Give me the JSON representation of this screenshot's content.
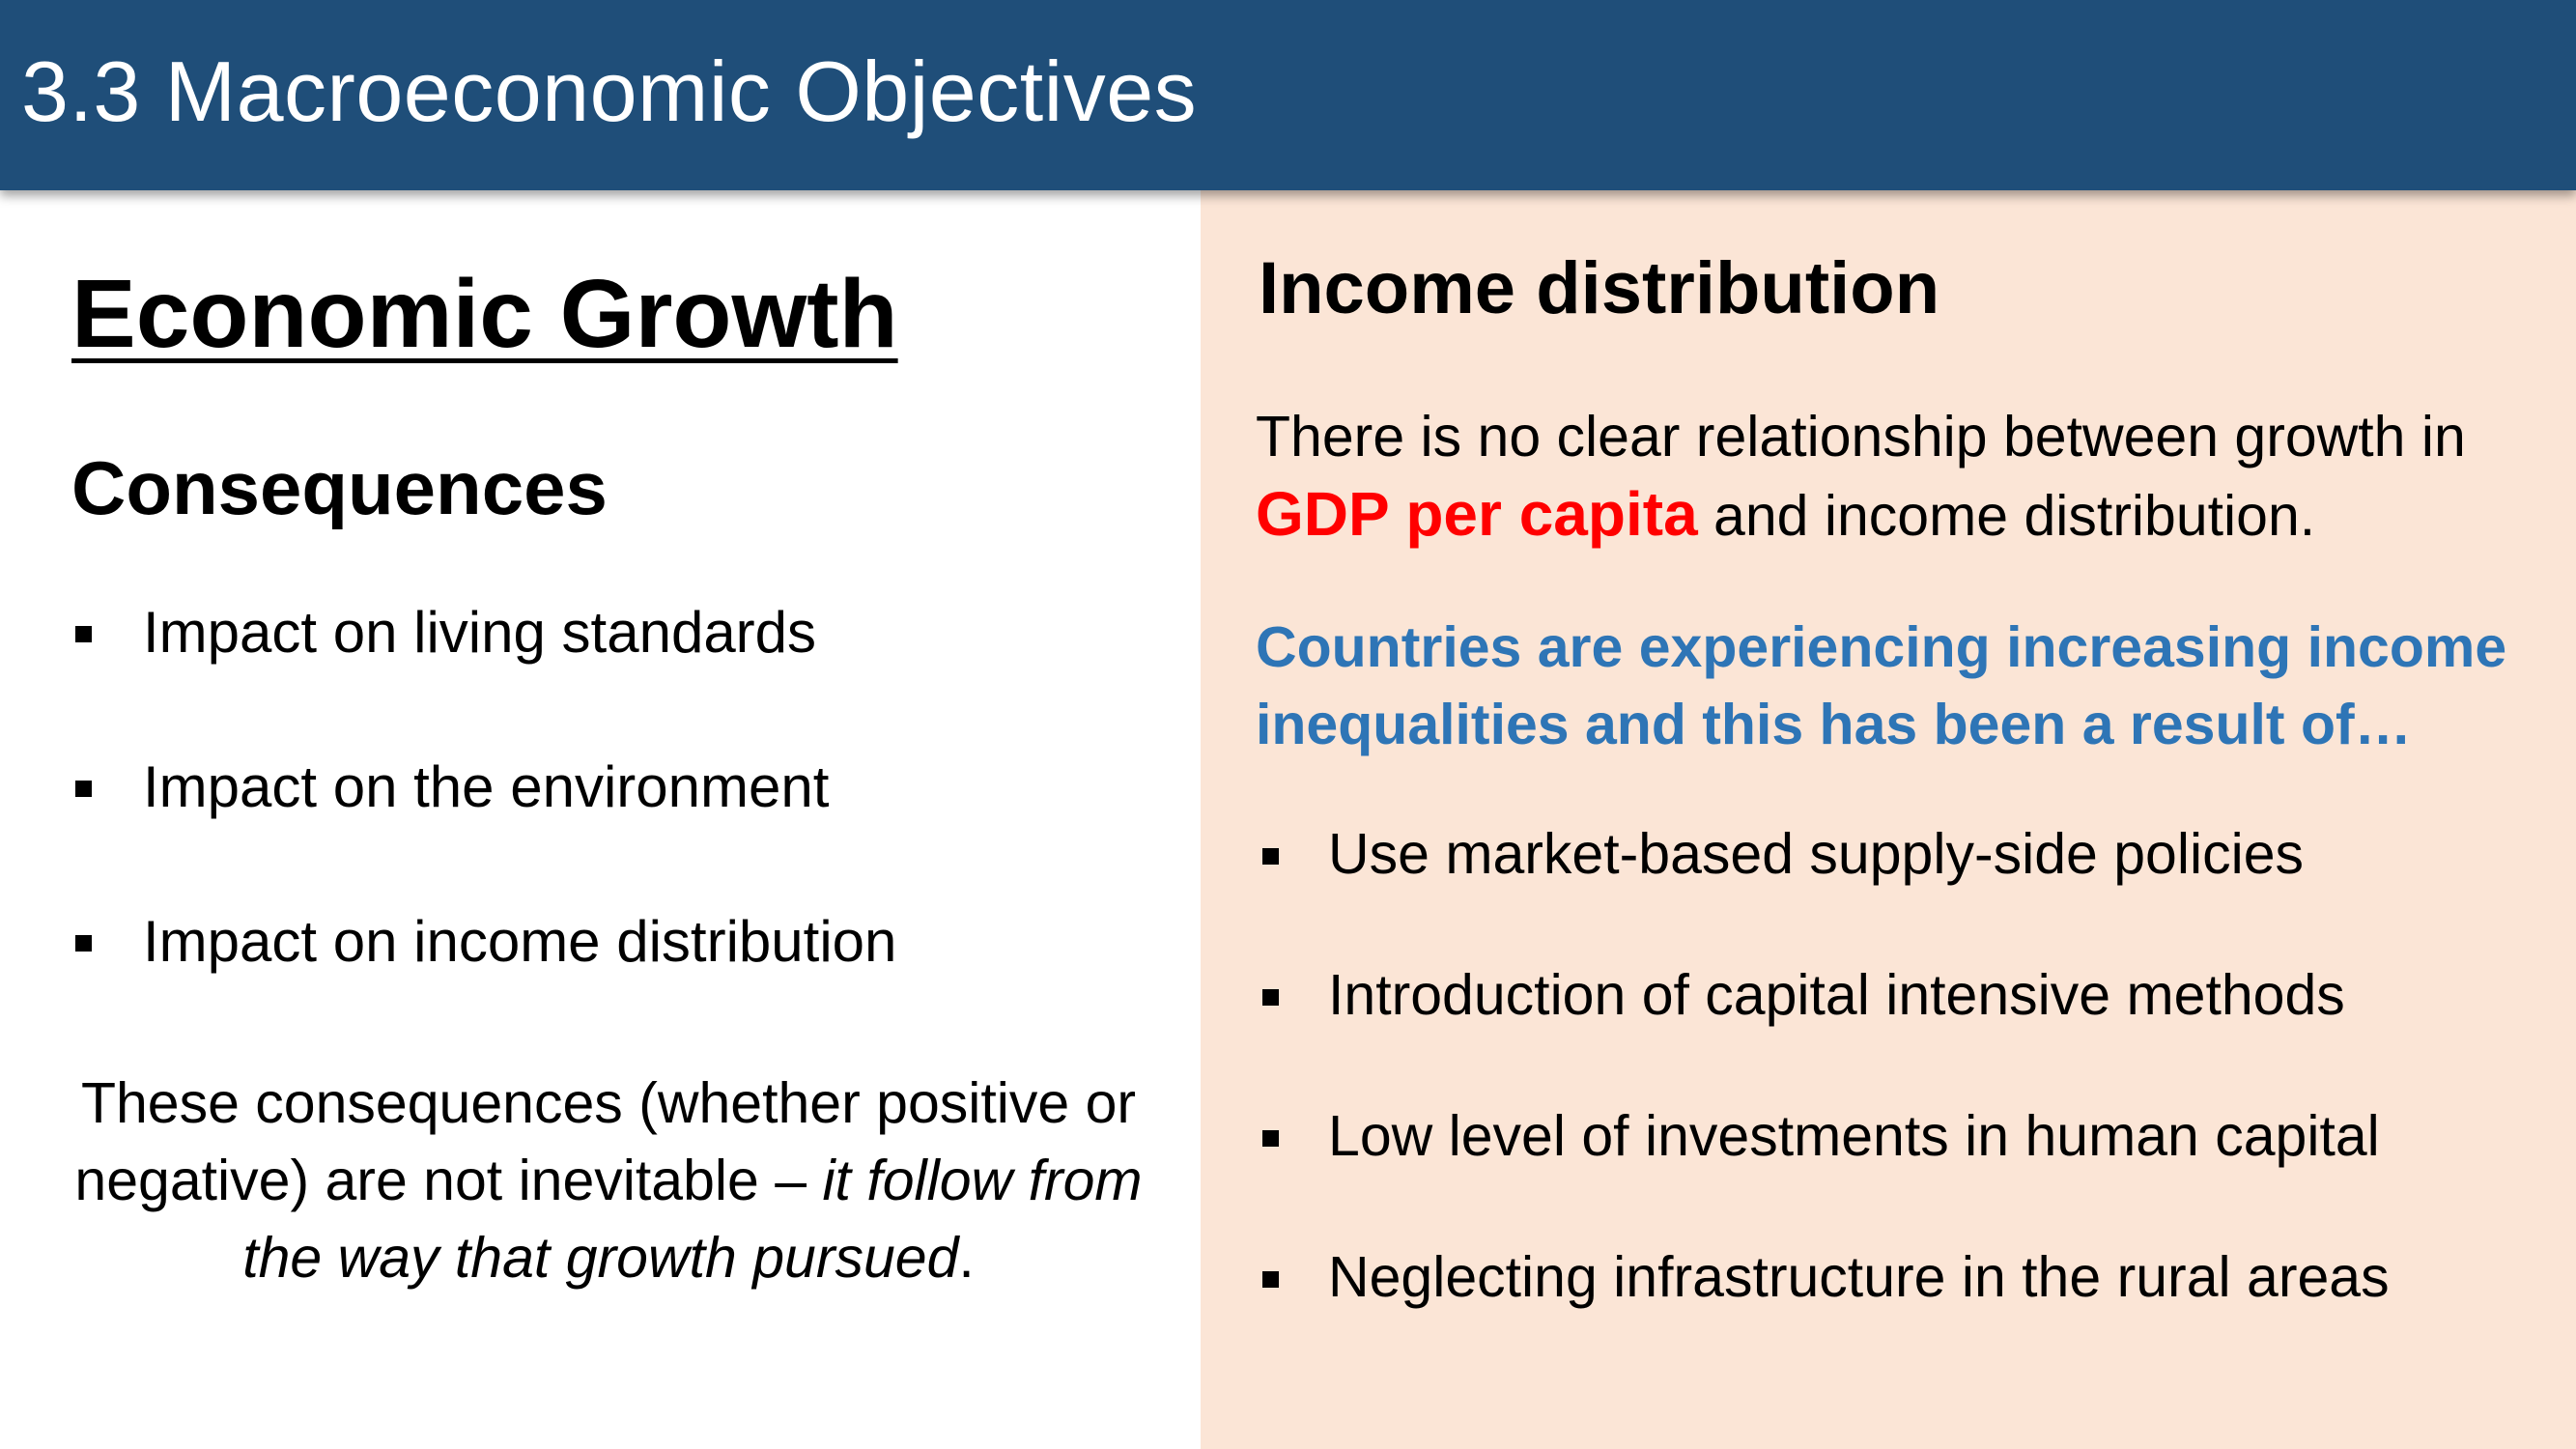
{
  "header": {
    "title": "3.3 Macroeconomic Objectives"
  },
  "left": {
    "heading": "Economic Growth",
    "subheading": "Consequences",
    "items": [
      "Impact on living standards",
      "Impact on the environment",
      "Impact on income distribution"
    ],
    "note": {
      "plain": "These consequences (whether positive or negative) are not inevitable – ",
      "italic": "it follow from the way that growth pursued",
      "end": "."
    }
  },
  "right": {
    "heading": "Income distribution",
    "para1": {
      "before": "There is no clear relationship between growth in ",
      "highlight": "GDP per capita",
      "after": " and income distribution."
    },
    "para2": "Countries are experiencing increasing income inequalities and this has been a result of…",
    "items": [
      "Use market-based supply-side policies",
      "Introduction of capital intensive methods",
      "Low level of investments in human capital",
      "Neglecting infrastructure in the rural areas"
    ]
  },
  "colors": {
    "header_bg": "#1f4e79",
    "panel_bg": "#fbe5d6",
    "highlight_red": "#ff0000",
    "accent_blue": "#2e75b6"
  }
}
